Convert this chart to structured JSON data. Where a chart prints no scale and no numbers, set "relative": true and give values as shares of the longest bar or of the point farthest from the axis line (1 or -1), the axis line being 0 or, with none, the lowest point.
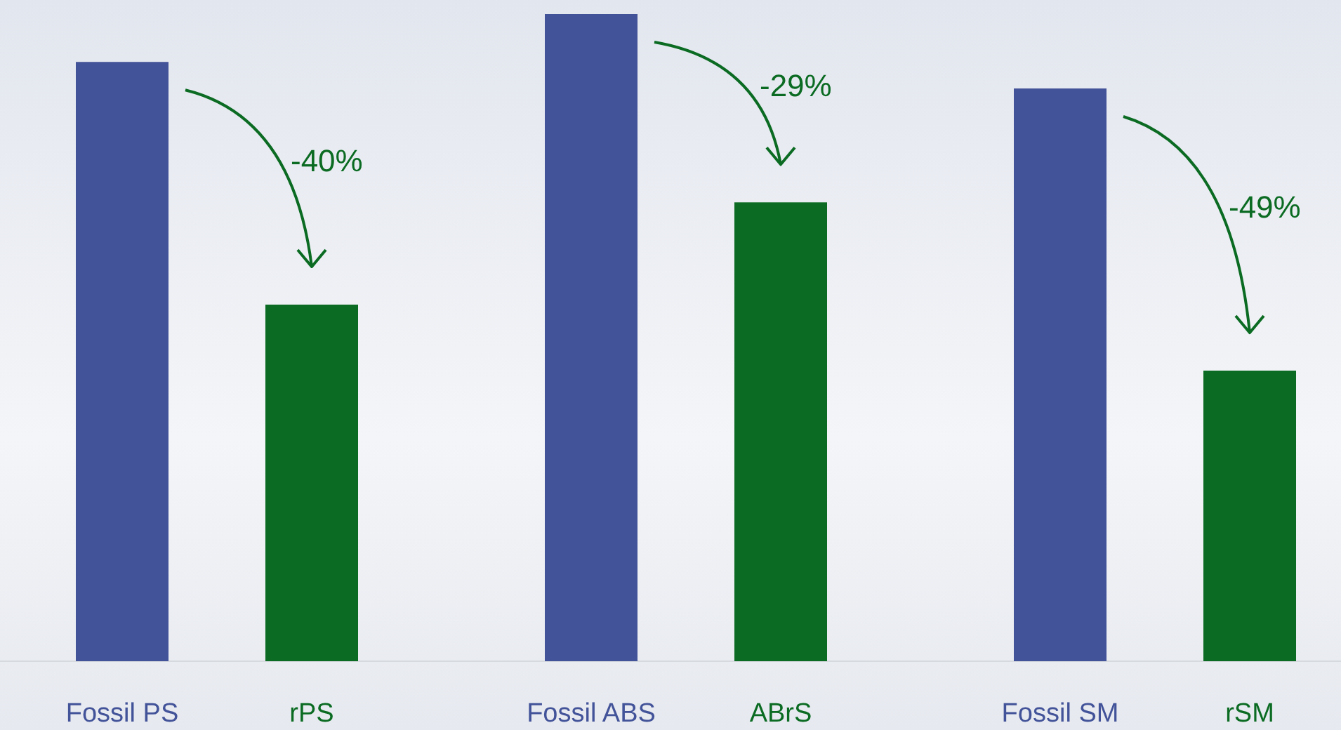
{
  "chart_data": {
    "type": "bar",
    "relative": true,
    "categories": [
      "Fossil PS",
      "rPS",
      "Fossil ABS",
      "ABrS",
      "Fossil SM",
      "rSM"
    ],
    "values": [
      0.926,
      0.551,
      1,
      0.709,
      0.885,
      0.449
    ],
    "colors": [
      "#435399",
      "#0b6b22",
      "#435399",
      "#0b6b22",
      "#435399",
      "#0b6b22"
    ],
    "annotations": [
      "-40%",
      "-29%",
      "-49%"
    ]
  }
}
